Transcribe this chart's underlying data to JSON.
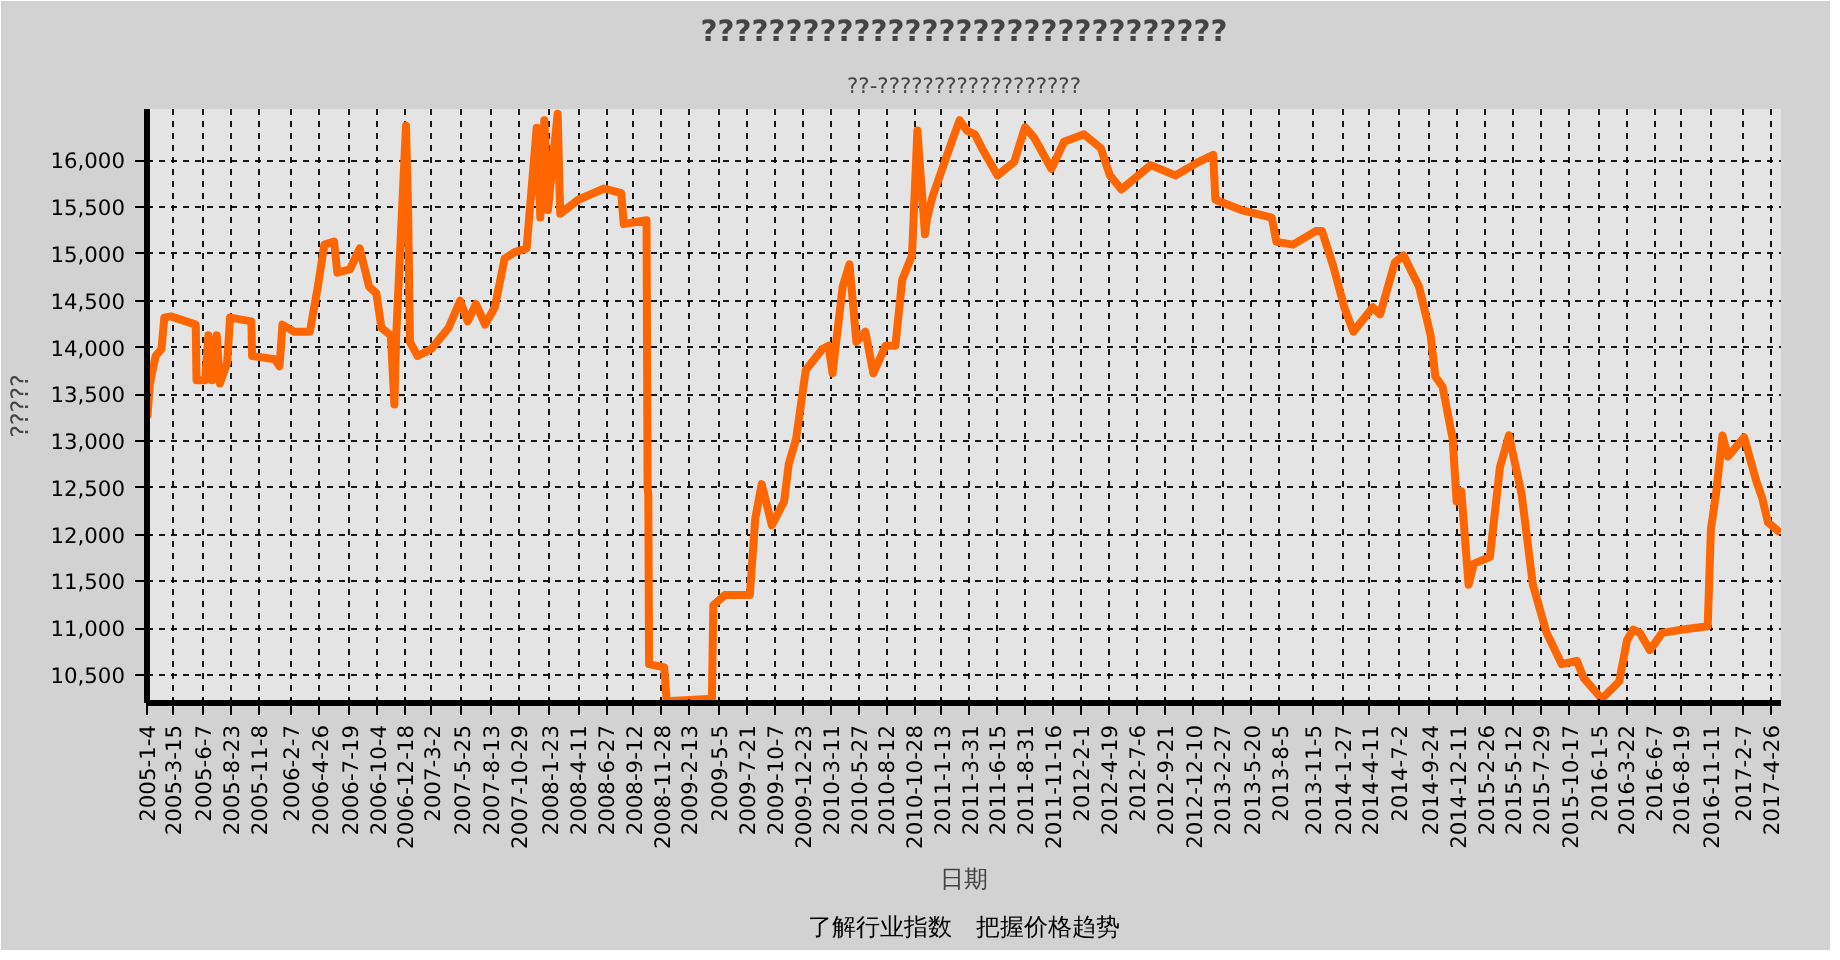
{
  "chart_data": {
    "type": "line",
    "title": "???????????????????????????????",
    "subtitle": "??-??????????????????",
    "xlabel": "日期",
    "ylabel": "?????",
    "annotations": [
      "了解行业指数　把握价格趋势"
    ],
    "x": [
      "2005-01-04",
      "2005-01-11",
      "2005-01-27",
      "2005-02-12",
      "2005-02-20",
      "2005-03-10",
      "2005-05-18",
      "2005-05-20",
      "2005-06-13",
      "2005-06-22",
      "2005-07-02",
      "2005-07-15",
      "2005-07-24",
      "2005-08-13",
      "2005-08-21",
      "2005-10-19",
      "2005-10-21",
      "2005-12-23",
      "2006-01-05",
      "2006-01-13",
      "2006-02-14",
      "2006-03-30",
      "2006-04-21",
      "2006-05-09",
      "2006-06-05",
      "2006-06-14",
      "2006-07-19",
      "2006-08-15",
      "2006-09-10",
      "2006-09-30",
      "2006-10-14",
      "2006-11-09",
      "2006-11-19",
      "2006-11-24",
      "2006-12-21",
      "2006-12-27",
      "2007-01-01",
      "2007-01-22",
      "2007-03-01",
      "2007-04-18",
      "2007-05-20",
      "2007-06-10",
      "2007-07-03",
      "2007-07-28",
      "2007-08-24",
      "2007-09-20",
      "2007-10-18",
      "2007-11-20",
      "2007-12-18",
      "2007-12-28",
      "2008-01-08",
      "2008-01-18",
      "2008-02-14",
      "2008-02-21",
      "2008-04-11",
      "2008-06-22",
      "2008-08-08",
      "2008-08-15",
      "2008-10-17",
      "2008-10-20",
      "2008-10-22",
      "2008-10-24",
      "2008-12-05",
      "2008-12-12",
      "2009-04-16",
      "2009-04-20",
      "2009-05-22",
      "2009-07-30",
      "2009-08-14",
      "2009-09-01",
      "2009-09-29",
      "2009-11-02",
      "2009-11-15",
      "2009-12-05",
      "2010-01-01",
      "2010-02-16",
      "2010-03-05",
      "2010-03-16",
      "2010-04-13",
      "2010-05-02",
      "2010-05-21",
      "2010-06-15",
      "2010-07-07",
      "2010-08-10",
      "2010-09-06",
      "2010-09-25",
      "2010-10-22",
      "2010-11-06",
      "2010-11-27",
      "2010-12-03",
      "2010-12-18",
      "2011-02-09",
      "2011-03-03",
      "2011-03-23",
      "2011-04-14",
      "2011-05-08",
      "2011-06-16",
      "2011-08-01",
      "2011-08-31",
      "2011-09-25",
      "2011-11-12",
      "2011-12-17",
      "2012-02-10",
      "2012-03-28",
      "2012-04-22",
      "2012-05-24",
      "2012-08-13",
      "2012-10-20",
      "2012-12-24",
      "2013-02-02",
      "2013-02-08",
      "2013-04-21",
      "2013-07-14",
      "2013-07-27",
      "2013-09-11",
      "2013-11-13",
      "2013-11-30",
      "2013-12-31",
      "2014-01-31",
      "2014-02-25",
      "2014-04-20",
      "2014-05-10",
      "2014-06-20",
      "2014-07-14",
      "2014-08-26",
      "2014-09-27",
      "2014-10-10",
      "2014-10-30",
      "2014-11-27",
      "2014-12-08",
      "2014-12-21",
      "2015-01-10",
      "2015-01-25",
      "2015-03-10",
      "2015-04-07",
      "2015-05-02",
      "2015-06-06",
      "2015-07-07",
      "2015-08-14",
      "2015-09-25",
      "2015-11-06",
      "2015-11-25",
      "2016-01-14",
      "2016-03-02",
      "2016-03-24",
      "2016-04-10",
      "2016-04-28",
      "2016-05-26",
      "2016-06-29",
      "2016-08-26",
      "2016-11-02",
      "2016-11-11",
      "2016-11-25",
      "2016-12-13",
      "2016-12-28",
      "2017-02-11",
      "2017-03-16",
      "2017-04-02",
      "2017-04-18",
      "2017-05-22"
    ],
    "series": [
      {
        "color": "#ff6600",
        "values": [
          13250,
          13615,
          13910,
          13985,
          14320,
          14333,
          14245,
          13650,
          13650,
          14130,
          13650,
          14130,
          13615,
          13837,
          14320,
          14280,
          13910,
          13875,
          13800,
          14245,
          14170,
          14170,
          14650,
          15100,
          15133,
          14800,
          14837,
          15060,
          14650,
          14580,
          14210,
          14130,
          13390,
          14130,
          16370,
          15470,
          14060,
          13910,
          13985,
          14210,
          14500,
          14280,
          14465,
          14245,
          14430,
          14950,
          15020,
          15060,
          16350,
          15390,
          16430,
          15470,
          16500,
          15430,
          15580,
          15700,
          15650,
          15320,
          15360,
          12500,
          12430,
          10615,
          10580,
          10220,
          10245,
          11245,
          11355,
          11355,
          12170,
          12540,
          12100,
          12355,
          12760,
          13020,
          13760,
          13985,
          14020,
          13725,
          14650,
          14890,
          14060,
          14170,
          13725,
          14020,
          14020,
          14725,
          14985,
          16320,
          15210,
          15390,
          15615,
          16200,
          16430,
          16320,
          16280,
          16100,
          15840,
          15985,
          16355,
          16245,
          15910,
          16200,
          16280,
          16130,
          15840,
          15690,
          15950,
          15840,
          15985,
          16060,
          15580,
          15470,
          15390,
          15130,
          15100,
          15245,
          15245,
          14875,
          14430,
          14170,
          14430,
          14355,
          14910,
          14985,
          14650,
          14130,
          13690,
          13580,
          13020,
          12355,
          12465,
          11465,
          11690,
          11760,
          12725,
          13060,
          12430,
          11465,
          10950,
          10615,
          10650,
          10465,
          10245,
          10430,
          10875,
          10985,
          10950,
          10765,
          10950,
          10985,
          11020,
          12060,
          12430,
          13060,
          12835,
          13040,
          12580,
          12390,
          12130,
          12020
        ]
      }
    ],
    "xlim": [
      "2005-01-03",
      "2017-05-24"
    ],
    "ylim": [
      10200,
      16550
    ],
    "yticks": [
      {
        "value": 10500,
        "label": "10,500"
      },
      {
        "value": 11000,
        "label": "11,000"
      },
      {
        "value": 11500,
        "label": "11,500"
      },
      {
        "value": 12000,
        "label": "12,000"
      },
      {
        "value": 12500,
        "label": "12,500"
      },
      {
        "value": 13000,
        "label": "13,000"
      },
      {
        "value": 13500,
        "label": "13,500"
      },
      {
        "value": 14000,
        "label": "14,000"
      },
      {
        "value": 14500,
        "label": "14,500"
      },
      {
        "value": 15000,
        "label": "15,000"
      },
      {
        "value": 15500,
        "label": "15,500"
      },
      {
        "value": 16000,
        "label": "16,000"
      }
    ],
    "xticks": [
      {
        "value": "2005-01-04",
        "label": "2005-1-4"
      },
      {
        "value": "2005-03-15",
        "label": "2005-3-15"
      },
      {
        "value": "2005-06-07",
        "label": "2005-6-7"
      },
      {
        "value": "2005-08-23",
        "label": "2005-8-23"
      },
      {
        "value": "2005-11-08",
        "label": "2005-11-8"
      },
      {
        "value": "2006-02-07",
        "label": "2006-2-7"
      },
      {
        "value": "2006-04-26",
        "label": "2006-4-26"
      },
      {
        "value": "2006-07-19",
        "label": "2006-7-19"
      },
      {
        "value": "2006-10-04",
        "label": "2006-10-4"
      },
      {
        "value": "2006-12-18",
        "label": "2006-12-18"
      },
      {
        "value": "2007-03-02",
        "label": "2007-3-2"
      },
      {
        "value": "2007-05-25",
        "label": "2007-5-25"
      },
      {
        "value": "2007-08-13",
        "label": "2007-8-13"
      },
      {
        "value": "2007-10-29",
        "label": "2007-10-29"
      },
      {
        "value": "2008-01-23",
        "label": "2008-1-23"
      },
      {
        "value": "2008-04-11",
        "label": "2008-4-11"
      },
      {
        "value": "2008-06-27",
        "label": "2008-6-27"
      },
      {
        "value": "2008-09-12",
        "label": "2008-9-12"
      },
      {
        "value": "2008-11-28",
        "label": "2008-11-28"
      },
      {
        "value": "2009-02-13",
        "label": "2009-2-13"
      },
      {
        "value": "2009-05-05",
        "label": "2009-5-5"
      },
      {
        "value": "2009-07-21",
        "label": "2009-7-21"
      },
      {
        "value": "2009-10-07",
        "label": "2009-10-7"
      },
      {
        "value": "2009-12-23",
        "label": "2009-12-23"
      },
      {
        "value": "2010-03-11",
        "label": "2010-3-11"
      },
      {
        "value": "2010-05-27",
        "label": "2010-5-27"
      },
      {
        "value": "2010-08-12",
        "label": "2010-8-12"
      },
      {
        "value": "2010-10-28",
        "label": "2010-10-28"
      },
      {
        "value": "2011-01-13",
        "label": "2011-1-13"
      },
      {
        "value": "2011-03-31",
        "label": "2011-3-31"
      },
      {
        "value": "2011-06-15",
        "label": "2011-6-15"
      },
      {
        "value": "2011-08-31",
        "label": "2011-8-31"
      },
      {
        "value": "2011-11-16",
        "label": "2011-11-16"
      },
      {
        "value": "2012-02-01",
        "label": "2012-2-1"
      },
      {
        "value": "2012-04-19",
        "label": "2012-4-19"
      },
      {
        "value": "2012-07-06",
        "label": "2012-7-6"
      },
      {
        "value": "2012-09-21",
        "label": "2012-9-21"
      },
      {
        "value": "2012-12-10",
        "label": "2012-12-10"
      },
      {
        "value": "2013-02-27",
        "label": "2013-2-27"
      },
      {
        "value": "2013-05-20",
        "label": "2013-5-20"
      },
      {
        "value": "2013-08-05",
        "label": "2013-8-5"
      },
      {
        "value": "2013-11-05",
        "label": "2013-11-5"
      },
      {
        "value": "2014-01-27",
        "label": "2014-1-27"
      },
      {
        "value": "2014-04-11",
        "label": "2014-4-11"
      },
      {
        "value": "2014-07-02",
        "label": "2014-7-2"
      },
      {
        "value": "2014-09-24",
        "label": "2014-9-24"
      },
      {
        "value": "2014-12-11",
        "label": "2014-12-11"
      },
      {
        "value": "2015-02-26",
        "label": "2015-2-26"
      },
      {
        "value": "2015-05-12",
        "label": "2015-5-12"
      },
      {
        "value": "2015-07-29",
        "label": "2015-7-29"
      },
      {
        "value": "2015-10-17",
        "label": "2015-10-17"
      },
      {
        "value": "2016-01-05",
        "label": "2016-1-5"
      },
      {
        "value": "2016-03-22",
        "label": "2016-3-22"
      },
      {
        "value": "2016-06-07",
        "label": "2016-6-7"
      },
      {
        "value": "2016-08-19",
        "label": "2016-8-19"
      },
      {
        "value": "2016-11-11",
        "label": "2016-11-11"
      },
      {
        "value": "2017-02-07",
        "label": "2017-2-7"
      },
      {
        "value": "2017-04-26",
        "label": "2017-4-26"
      }
    ],
    "grid": true,
    "line_style": "solid"
  }
}
